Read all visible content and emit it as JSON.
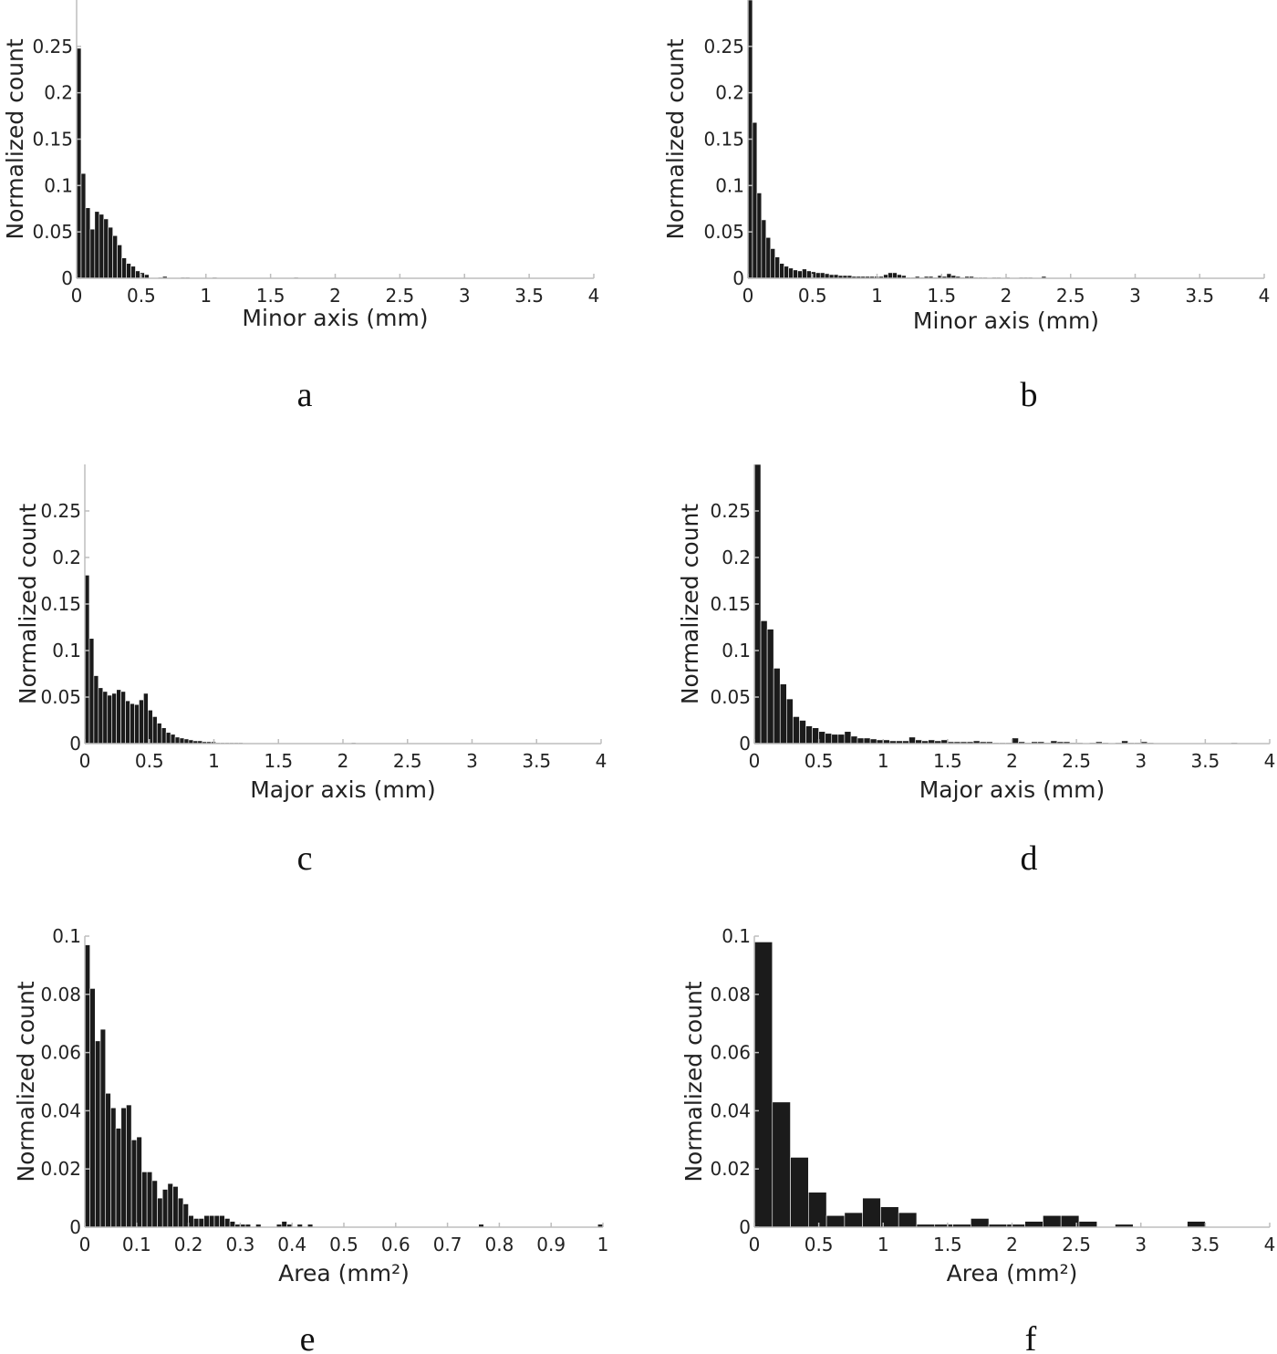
{
  "chart_data": [
    {
      "panel": "a",
      "type": "bar",
      "xlabel": "Minor axis (mm)",
      "ylabel": "Normalized count",
      "xlim": [
        0,
        4
      ],
      "ylim": [
        0,
        0.3
      ],
      "xticks": [
        "0",
        "0.5",
        "1",
        "1.5",
        "2",
        "2.5",
        "3",
        "3.5",
        "4"
      ],
      "yticks": [
        "0",
        "0.05",
        "0.1",
        "0.15",
        "0.2",
        "0.25"
      ],
      "bin_width": 0.035,
      "values": [
        0.248,
        0.113,
        0.076,
        0.053,
        0.072,
        0.069,
        0.064,
        0.055,
        0.046,
        0.036,
        0.022,
        0.016,
        0.013,
        0.008,
        0.006,
        0.004,
        0.0,
        0.0,
        0.001,
        0.002,
        0.0,
        0.0,
        0.0,
        0.001,
        0.001,
        0.0,
        0.0,
        0.0,
        0.0,
        0.0,
        0.001,
        0.0,
        0.0,
        0.0,
        0.0,
        0.0,
        0.0,
        0.0,
        0.0,
        0.0,
        0.0,
        0.0,
        0.0,
        0.0,
        0.0,
        0.0,
        0.0,
        0.0,
        0.001
      ]
    },
    {
      "panel": "b",
      "type": "bar",
      "xlabel": "Minor axis (mm)",
      "ylabel": "Normalized count",
      "xlim": [
        0,
        4
      ],
      "ylim": [
        0,
        0.3
      ],
      "xticks": [
        "0",
        "0.5",
        "1",
        "1.5",
        "2",
        "2.5",
        "3",
        "3.5",
        "4"
      ],
      "yticks": [
        "0",
        "0.05",
        "0.1",
        "0.15",
        "0.2",
        "0.25"
      ],
      "bin_width": 0.035,
      "values": [
        0.3,
        0.168,
        0.092,
        0.063,
        0.044,
        0.032,
        0.023,
        0.016,
        0.013,
        0.011,
        0.009,
        0.008,
        0.01,
        0.008,
        0.007,
        0.006,
        0.006,
        0.005,
        0.004,
        0.004,
        0.003,
        0.003,
        0.003,
        0.002,
        0.002,
        0.002,
        0.002,
        0.002,
        0.002,
        0.002,
        0.004,
        0.006,
        0.006,
        0.004,
        0.003,
        0.001,
        0.001,
        0.002,
        0.001,
        0.002,
        0.002,
        0.001,
        0.003,
        0.002,
        0.005,
        0.003,
        0.002,
        0.001,
        0.002,
        0.002,
        0.001,
        0.001,
        0.001,
        0.0,
        0.001,
        0.001,
        0.0,
        0.001,
        0.0,
        0.0,
        0.001,
        0.001,
        0.001,
        0.0,
        0.0,
        0.002
      ]
    },
    {
      "panel": "c",
      "type": "bar",
      "xlabel": "Major axis (mm)",
      "ylabel": "Normalized count",
      "xlim": [
        0,
        4
      ],
      "ylim": [
        0,
        0.3
      ],
      "xticks": [
        "0",
        "0.5",
        "1",
        "1.5",
        "2",
        "2.5",
        "3",
        "3.5",
        "4"
      ],
      "yticks": [
        "0",
        "0.05",
        "0.1",
        "0.15",
        "0.2",
        "0.25"
      ],
      "bin_width": 0.035,
      "values": [
        0.181,
        0.113,
        0.073,
        0.06,
        0.056,
        0.052,
        0.054,
        0.058,
        0.056,
        0.046,
        0.043,
        0.042,
        0.047,
        0.054,
        0.036,
        0.029,
        0.022,
        0.017,
        0.012,
        0.01,
        0.007,
        0.006,
        0.005,
        0.004,
        0.003,
        0.003,
        0.002,
        0.002,
        0.002,
        0.001,
        0.001,
        0.001,
        0.001,
        0.001,
        0.001,
        0.0,
        0.0,
        0.0,
        0.0,
        0.0,
        0.0,
        0.0,
        0.0,
        0.0,
        0.0,
        0.0,
        0.0,
        0.0,
        0.0,
        0.0,
        0.0,
        0.0,
        0.0,
        0.0,
        0.0,
        0.0,
        0.0,
        0.0,
        0.0,
        0.001
      ]
    },
    {
      "panel": "d",
      "type": "bar",
      "xlabel": "Major axis (mm)",
      "ylabel": "Normalized count",
      "xlim": [
        0,
        4
      ],
      "ylim": [
        0,
        0.3
      ],
      "xticks": [
        "0",
        "0.5",
        "1",
        "1.5",
        "2",
        "2.5",
        "3",
        "3.5",
        "4"
      ],
      "yticks": [
        "0",
        "0.05",
        "0.1",
        "0.15",
        "0.2",
        "0.25"
      ],
      "bin_width": 0.05,
      "values": [
        0.3,
        0.132,
        0.123,
        0.081,
        0.064,
        0.048,
        0.029,
        0.025,
        0.019,
        0.017,
        0.013,
        0.011,
        0.01,
        0.01,
        0.013,
        0.008,
        0.006,
        0.006,
        0.005,
        0.004,
        0.004,
        0.003,
        0.003,
        0.003,
        0.007,
        0.004,
        0.003,
        0.004,
        0.003,
        0.004,
        0.002,
        0.002,
        0.002,
        0.002,
        0.003,
        0.002,
        0.002,
        0.001,
        0.001,
        0.001,
        0.006,
        0.002,
        0.001,
        0.002,
        0.002,
        0.001,
        0.003,
        0.002,
        0.002,
        0.001,
        0.001,
        0.0,
        0.001,
        0.002,
        0.001,
        0.0,
        0.001,
        0.003,
        0.001,
        0.001,
        0.002,
        0.001,
        0.0,
        0.0,
        0.0,
        0.0,
        0.0,
        0.0,
        0.0,
        0.0,
        0.0,
        0.0,
        0.0,
        0.0,
        0.001,
        0.0
      ]
    },
    {
      "panel": "e",
      "type": "bar",
      "xlabel": "Area (mm²)",
      "ylabel": "Normalized count",
      "xlim": [
        0,
        1
      ],
      "ylim": [
        0,
        0.1
      ],
      "xticks": [
        "0",
        "0.1",
        "0.2",
        "0.3",
        "0.4",
        "0.5",
        "0.6",
        "0.7",
        "0.8",
        "0.9",
        "1"
      ],
      "yticks": [
        "0",
        "0.02",
        "0.04",
        "0.06",
        "0.08",
        "0.1"
      ],
      "bin_width": 0.01,
      "values": [
        0.097,
        0.082,
        0.064,
        0.068,
        0.046,
        0.041,
        0.034,
        0.041,
        0.042,
        0.03,
        0.031,
        0.019,
        0.019,
        0.016,
        0.01,
        0.013,
        0.015,
        0.014,
        0.01,
        0.008,
        0.004,
        0.003,
        0.003,
        0.004,
        0.004,
        0.004,
        0.004,
        0.003,
        0.002,
        0.001,
        0.001,
        0.001,
        0.0,
        0.001,
        0.0,
        0.0,
        0.0,
        0.001,
        0.002,
        0.001,
        0.0,
        0.001,
        0.0,
        0.001,
        0.0,
        0.0,
        0.0,
        0.0,
        0.0,
        0.0,
        0.0,
        0.0,
        0.0,
        0.0,
        0.0,
        0.0,
        0.0,
        0.0,
        0.0,
        0.0,
        0.0,
        0.0,
        0.0,
        0.0,
        0.0,
        0.0,
        0.0,
        0.0,
        0.0,
        0.0,
        0.0,
        0.0,
        0.0,
        0.0,
        0.0,
        0.0,
        0.001,
        0.0,
        0.0,
        0.0,
        0.0,
        0.0,
        0.0,
        0.0,
        0.0,
        0.0,
        0.0,
        0.0,
        0.0,
        0.0,
        0.0,
        0.0,
        0.0,
        0.0,
        0.0,
        0.0,
        0.0,
        0.0,
        0.0,
        0.001
      ]
    },
    {
      "panel": "f",
      "type": "bar",
      "xlabel": "Area (mm²)",
      "ylabel": "Normalized count",
      "xlim": [
        0,
        4
      ],
      "ylim": [
        0,
        0.1
      ],
      "xticks": [
        "0",
        "0.5",
        "1",
        "1.5",
        "2",
        "2.5",
        "3",
        "3.5",
        "4"
      ],
      "yticks": [
        "0",
        "0.02",
        "0.04",
        "0.06",
        "0.08",
        "0.1"
      ],
      "bin_width": 0.14,
      "values": [
        0.098,
        0.043,
        0.024,
        0.012,
        0.004,
        0.005,
        0.01,
        0.007,
        0.005,
        0.001,
        0.001,
        0.001,
        0.003,
        0.001,
        0.001,
        0.002,
        0.004,
        0.004,
        0.002,
        0.0,
        0.001,
        0.0,
        0.0,
        0.0,
        0.002,
        0.0
      ]
    }
  ]
}
